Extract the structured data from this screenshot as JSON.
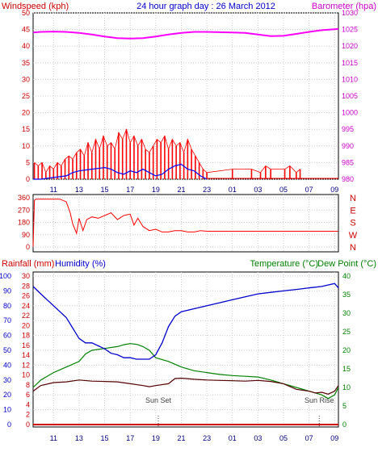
{
  "header": {
    "windspeed_label": "Windspeed (kph)",
    "title": "24 hour graph day : 26 March 2012",
    "barometer_label": "Barometer (hpa)"
  },
  "lower_header": {
    "rainfall_label": "Rainfall (mm)",
    "humidity_label": "Humidity (%)",
    "temperature_label": "Temperature (°C)",
    "dewpoint_label": "Dew Point (°C)"
  },
  "colors": {
    "wind_speed": "#ff0000",
    "wind_gust_bar": "#ff0000",
    "wind_avg": "#0000ff",
    "wind_green": "#00aa00",
    "barometer": "#ff00ff",
    "direction": "#ff0000",
    "humidity": "#0000cc",
    "temperature": "#008000",
    "dewpoint": "#550000",
    "rainfall": "#cc0000",
    "axis_red": "#cc0000",
    "axis_blue": "#0000cc",
    "axis_green": "#008000",
    "grid": "#cccccc"
  },
  "chart_data": [
    {
      "type": "line",
      "name": "wind-barometer",
      "x_ticks": [
        "11",
        "13",
        "15",
        "17",
        "19",
        "21",
        "23",
        "01",
        "03",
        "05",
        "07",
        "09"
      ],
      "y_left_ticks": [
        "0",
        "5",
        "10",
        "15",
        "20",
        "25",
        "30",
        "35",
        "40",
        "45",
        "50"
      ],
      "y_left_range": [
        0,
        50
      ],
      "y_right_ticks": [
        "980",
        "985",
        "990",
        "995",
        "1000",
        "1005",
        "1010",
        "1015",
        "1020",
        "1025",
        "1030"
      ],
      "y_right_range": [
        980,
        1030
      ],
      "grid": true,
      "series": [
        {
          "key": "barometer",
          "axis": "right",
          "x": [
            9.4,
            10,
            11,
            12,
            13,
            14,
            15,
            16,
            17,
            18,
            19,
            20,
            21,
            22,
            23,
            24,
            25,
            26,
            27,
            28,
            29,
            30,
            31,
            32,
            33,
            33.3
          ],
          "values": [
            1024.1,
            1024.3,
            1024.4,
            1024.3,
            1024.0,
            1023.5,
            1022.9,
            1022.4,
            1022.3,
            1022.4,
            1022.9,
            1023.5,
            1024.0,
            1024.3,
            1024.3,
            1024.2,
            1024.1,
            1024.0,
            1023.5,
            1023.0,
            1023.1,
            1023.7,
            1024.3,
            1024.8,
            1025.1,
            1025.2
          ]
        },
        {
          "key": "wind_avg",
          "axis": "left",
          "x": [
            9.4,
            10,
            11,
            12,
            12.5,
            13,
            14,
            15,
            15.5,
            16,
            16.5,
            17,
            17.5,
            18,
            18.5,
            19,
            19.5,
            20,
            20.5,
            21,
            21.5,
            22,
            22.5,
            23
          ],
          "values": [
            0,
            0,
            0.5,
            1,
            2,
            2.5,
            3,
            3.5,
            3,
            2,
            1.5,
            2.5,
            2,
            3,
            2,
            1,
            1.5,
            3,
            4,
            4.5,
            3,
            2.5,
            1,
            0
          ]
        }
      ],
      "gust_bars": {
        "x": [
          9.5,
          9.8,
          10.1,
          10.4,
          10.7,
          11.0,
          11.3,
          11.6,
          11.9,
          12.2,
          12.5,
          12.8,
          13.1,
          13.4,
          13.7,
          14.0,
          14.3,
          14.6,
          14.9,
          15.2,
          15.5,
          15.8,
          16.1,
          16.4,
          16.7,
          17.0,
          17.3,
          17.6,
          17.9,
          18.2,
          18.5,
          18.8,
          19.1,
          19.4,
          19.7,
          20.0,
          20.3,
          20.6,
          20.9,
          21.2,
          21.5,
          21.8,
          22.1,
          22.4,
          22.7,
          23.0,
          25.0,
          26.5,
          27.2,
          27.6,
          28.0,
          29.1,
          29.5,
          30.0,
          30.3
        ],
        "values": [
          5,
          4,
          5,
          2,
          4,
          3,
          5,
          4,
          6,
          7,
          6,
          8,
          9,
          7,
          11,
          8,
          12,
          9,
          13,
          10,
          11,
          9,
          14,
          12,
          15,
          11,
          13,
          10,
          12,
          9,
          8,
          10,
          12,
          11,
          13,
          9,
          12,
          10,
          11,
          8,
          12,
          9,
          7,
          5,
          3,
          2,
          3,
          3,
          2,
          4,
          3,
          3,
          4,
          2,
          3
        ]
      }
    },
    {
      "type": "line",
      "name": "wind-direction",
      "y_left_ticks": [
        "0",
        "90",
        "180",
        "270",
        "360"
      ],
      "y_left_range": [
        0,
        360
      ],
      "y_right_ticks": [
        "N",
        "W",
        "S",
        "E",
        "N"
      ],
      "grid": true,
      "series": [
        {
          "key": "direction",
          "x": [
            9.4,
            9.5,
            9.6,
            10,
            11,
            11.5,
            12,
            12.3,
            12.5,
            12.8,
            13,
            13.3,
            13.6,
            14,
            14.5,
            15,
            15.5,
            16,
            16.5,
            17,
            17.3,
            17.6,
            18,
            18.5,
            19,
            19.5,
            20,
            20.5,
            21,
            21.5,
            22,
            22.3,
            22.5,
            23,
            33.3
          ],
          "values": [
            0,
            340,
            350,
            350,
            350,
            350,
            330,
            250,
            170,
            100,
            210,
            120,
            200,
            220,
            210,
            230,
            250,
            200,
            230,
            240,
            160,
            210,
            150,
            120,
            130,
            110,
            110,
            120,
            120,
            110,
            110,
            115,
            120,
            115,
            115
          ]
        }
      ]
    },
    {
      "type": "line",
      "name": "temp-humidity-rain",
      "x_ticks": [
        "11",
        "13",
        "15",
        "17",
        "19",
        "21",
        "23",
        "01",
        "03",
        "05",
        "07",
        "09"
      ],
      "humidity_ticks": [
        "0",
        "10",
        "20",
        "30",
        "40",
        "50",
        "60",
        "70",
        "80",
        "90",
        "100"
      ],
      "humidity_range": [
        0,
        100
      ],
      "rain_ticks": [
        "0",
        "2",
        "4",
        "6",
        "8",
        "10",
        "12",
        "14",
        "16",
        "18",
        "20",
        "22",
        "24",
        "26",
        "28",
        "30"
      ],
      "rain_range": [
        0,
        30
      ],
      "temp_ticks": [
        "0",
        "5",
        "10",
        "15",
        "20",
        "25",
        "30",
        "35",
        "40"
      ],
      "temp_range": [
        0,
        40
      ],
      "annotations": [
        {
          "text": "Sun Set",
          "x": 19.2
        },
        {
          "text": "Sun Rise",
          "x": 31.8
        }
      ],
      "grid": true,
      "series": [
        {
          "key": "humidity",
          "axis": "humidity",
          "x": [
            9.4,
            10,
            11,
            12,
            12.5,
            13,
            13.5,
            14,
            14.5,
            15,
            15.5,
            16,
            16.5,
            17,
            17.5,
            18,
            18.5,
            19,
            19.5,
            20,
            20.5,
            21,
            22,
            23,
            24,
            25,
            26,
            27,
            28,
            29,
            30,
            31,
            32,
            33,
            33.3
          ],
          "values": [
            93,
            88,
            80,
            72,
            65,
            58,
            55,
            55,
            53,
            51,
            48,
            47,
            45,
            45,
            44,
            44,
            44,
            47,
            55,
            66,
            73,
            76,
            78,
            80,
            82,
            84,
            86,
            88,
            89,
            90,
            91,
            92,
            93,
            95,
            92
          ]
        },
        {
          "key": "temperature",
          "axis": "temp",
          "x": [
            9.4,
            10,
            11,
            12,
            13,
            13.5,
            14,
            15,
            16,
            16.5,
            17,
            17.5,
            18,
            18.5,
            19,
            20,
            21,
            22,
            23,
            24,
            25,
            26,
            27,
            28,
            29,
            30,
            31,
            32,
            32.5,
            33,
            33.3
          ],
          "values": [
            10,
            12,
            14,
            15.5,
            17,
            19,
            20,
            20.5,
            21,
            21.5,
            21.8,
            21.6,
            21,
            20,
            18,
            17,
            15.5,
            14.5,
            14,
            13.5,
            13.2,
            13,
            12.8,
            12,
            11,
            10,
            9,
            8,
            7,
            8,
            10
          ]
        },
        {
          "key": "dewpoint",
          "axis": "temp",
          "x": [
            9.4,
            10,
            11,
            12,
            13,
            14,
            15,
            16,
            17,
            18,
            18.5,
            19,
            20,
            20.5,
            21,
            22,
            23,
            24,
            25,
            26,
            27,
            28,
            29,
            30,
            31,
            31.5,
            32,
            32.5,
            33,
            33.3
          ],
          "values": [
            9,
            10.5,
            11.3,
            11.5,
            12,
            11.7,
            11.6,
            11.5,
            11,
            10.5,
            10.2,
            10.5,
            11,
            12.4,
            12.5,
            12.2,
            12,
            11.9,
            11.8,
            11.7,
            11.9,
            11.6,
            11,
            9.5,
            9,
            8.5,
            8.7,
            8.2,
            9,
            10.5
          ]
        },
        {
          "key": "rainfall",
          "axis": "rain",
          "x": [
            9.4,
            33.3
          ],
          "values": [
            0,
            0
          ]
        }
      ]
    }
  ]
}
